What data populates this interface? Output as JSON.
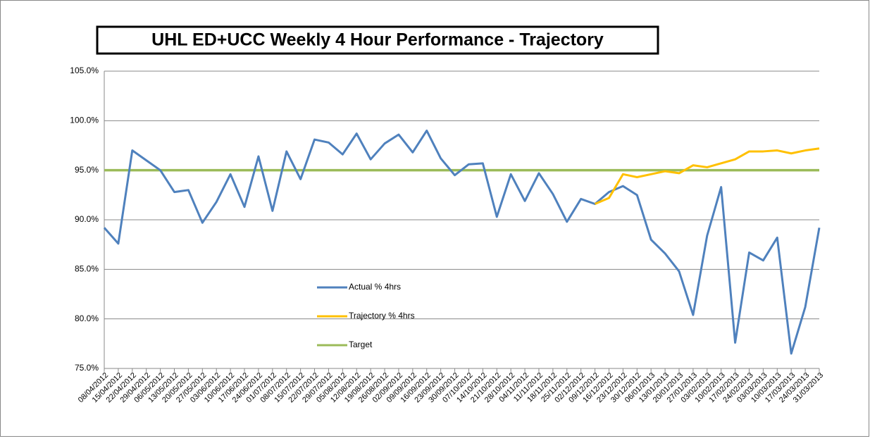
{
  "chart_data": {
    "type": "line",
    "title": "UHL ED+UCC Weekly 4 Hour Performance - Trajectory",
    "categories": [
      "08/04/2012",
      "15/04/2012",
      "22/04/2012",
      "29/04/2012",
      "06/05/2012",
      "13/05/2012",
      "20/05/2012",
      "27/05/2012",
      "03/06/2012",
      "10/06/2012",
      "17/06/2012",
      "24/06/2012",
      "01/07/2012",
      "08/07/2012",
      "15/07/2012",
      "22/07/2012",
      "29/07/2012",
      "05/08/2012",
      "12/08/2012",
      "19/08/2012",
      "26/08/2012",
      "02/09/2012",
      "09/09/2012",
      "16/09/2012",
      "23/09/2012",
      "30/09/2012",
      "07/10/2012",
      "14/10/2012",
      "21/10/2012",
      "28/10/2012",
      "04/11/2012",
      "11/11/2012",
      "18/11/2012",
      "25/11/2012",
      "02/12/2012",
      "09/12/2012",
      "16/12/2012",
      "23/12/2012",
      "30/12/2012",
      "06/01/2013",
      "13/01/2013",
      "20/01/2013",
      "27/01/2013",
      "03/02/2013",
      "10/02/2013",
      "17/02/2013",
      "24/02/2013",
      "03/03/2013",
      "10/03/2013",
      "17/03/2013",
      "24/03/2013",
      "31/03/2013"
    ],
    "series": [
      {
        "name": "Actual % 4hrs",
        "color": "#4f81bd",
        "values": [
          89.2,
          87.6,
          97.0,
          96.0,
          95.0,
          92.8,
          93.0,
          89.7,
          91.8,
          94.6,
          91.3,
          96.4,
          90.9,
          96.9,
          94.1,
          98.1,
          97.8,
          96.6,
          98.7,
          96.1,
          97.7,
          98.6,
          96.8,
          99.0,
          96.2,
          94.5,
          95.6,
          95.7,
          90.3,
          94.6,
          91.9,
          94.7,
          92.6,
          89.8,
          92.1,
          91.6,
          92.8,
          93.4,
          92.5,
          88.0,
          86.6,
          84.8,
          80.4,
          88.4,
          93.3,
          77.6,
          86.7,
          85.9,
          88.2,
          76.5,
          81.2,
          89.2
        ]
      },
      {
        "name": "Trajectory % 4hrs",
        "color": "#ffc000",
        "values": [
          null,
          null,
          null,
          null,
          null,
          null,
          null,
          null,
          null,
          null,
          null,
          null,
          null,
          null,
          null,
          null,
          null,
          null,
          null,
          null,
          null,
          null,
          null,
          null,
          null,
          null,
          null,
          null,
          null,
          null,
          null,
          null,
          null,
          null,
          null,
          91.6,
          92.2,
          94.6,
          94.3,
          94.6,
          94.9,
          94.7,
          95.5,
          95.3,
          95.7,
          96.1,
          96.9,
          96.9,
          97.0,
          96.7,
          97.0,
          97.2
        ]
      },
      {
        "name": "Target",
        "color": "#9bbb59",
        "values": [
          95,
          95,
          95,
          95,
          95,
          95,
          95,
          95,
          95,
          95,
          95,
          95,
          95,
          95,
          95,
          95,
          95,
          95,
          95,
          95,
          95,
          95,
          95,
          95,
          95,
          95,
          95,
          95,
          95,
          95,
          95,
          95,
          95,
          95,
          95,
          95,
          95,
          95,
          95,
          95,
          95,
          95,
          95,
          95,
          95,
          95,
          95,
          95,
          95,
          95,
          95,
          95
        ]
      }
    ],
    "ylim": [
      75,
      105
    ],
    "yticks": [
      {
        "value": 75,
        "label": "75.0%"
      },
      {
        "value": 80,
        "label": "80.0%"
      },
      {
        "value": 85,
        "label": "85.0%"
      },
      {
        "value": 90,
        "label": "90.0%"
      },
      {
        "value": 95,
        "label": "95.0%"
      },
      {
        "value": 100,
        "label": "100.0%"
      },
      {
        "value": 105,
        "label": "105.0%"
      }
    ],
    "grid": true
  }
}
